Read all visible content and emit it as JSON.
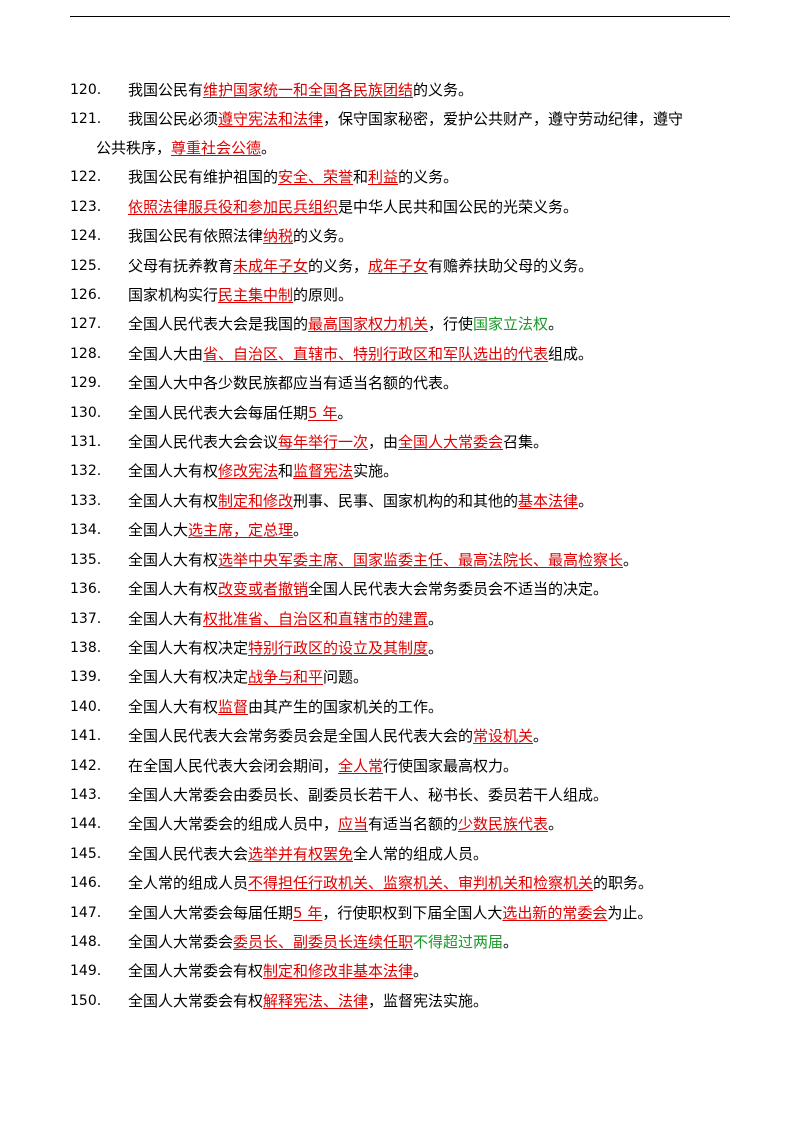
{
  "items": [
    {
      "num": "120.",
      "segs": [
        [
          "n",
          "我国公民有"
        ],
        [
          "r",
          "维护国家统一和全国各民族团结"
        ],
        [
          "n",
          "的义务。"
        ]
      ]
    },
    {
      "num": "121.",
      "wrap": true,
      "segs": [
        [
          "n",
          "我国公民必须"
        ],
        [
          "r",
          "遵守宪法和法律"
        ],
        [
          "n",
          "，保守国家秘密，爱护公共财产，遵守劳动纪律，遵守"
        ]
      ],
      "cont": [
        [
          "n",
          "公共秩序，"
        ],
        [
          "r",
          "尊重社会公德"
        ],
        [
          "n",
          "。"
        ]
      ]
    },
    {
      "num": "122.",
      "segs": [
        [
          "n",
          "我国公民有维护祖国的"
        ],
        [
          "r",
          "安全、荣誉"
        ],
        [
          "n",
          "和"
        ],
        [
          "r",
          "利益"
        ],
        [
          "n",
          "的义务。"
        ]
      ]
    },
    {
      "num": "123.",
      "segs": [
        [
          "r",
          "依照法律服兵役和参加民兵组织"
        ],
        [
          "n",
          "是中华人民共和国公民的光荣义务。"
        ]
      ]
    },
    {
      "num": "124.",
      "segs": [
        [
          "n",
          "我国公民有依照法律"
        ],
        [
          "r",
          "纳税"
        ],
        [
          "n",
          "的义务。"
        ]
      ]
    },
    {
      "num": "125.",
      "segs": [
        [
          "n",
          "父母有抚养教育"
        ],
        [
          "r",
          "未成年子女"
        ],
        [
          "n",
          "的义务，"
        ],
        [
          "r",
          "成年子女"
        ],
        [
          "n",
          "有赡养扶助父母的义务。"
        ]
      ]
    },
    {
      "num": "126.",
      "segs": [
        [
          "n",
          "国家机构实行"
        ],
        [
          "r",
          "民主集中制"
        ],
        [
          "n",
          "的原则。"
        ]
      ]
    },
    {
      "num": "127.",
      "segs": [
        [
          "n",
          "全国人民代表大会是我国的"
        ],
        [
          "r",
          "最高国家权力机关"
        ],
        [
          "n",
          "，行使"
        ],
        [
          "g",
          "国家立法权"
        ],
        [
          "n",
          "。"
        ]
      ]
    },
    {
      "num": "128.",
      "segs": [
        [
          "n",
          "全国人大由"
        ],
        [
          "r",
          "省、自治区、直辖市、特别行政区和军队选出的代表"
        ],
        [
          "n",
          "组成。"
        ]
      ]
    },
    {
      "num": "129.",
      "segs": [
        [
          "n",
          "全国人大中各少数民族都应当有适当名额的代表。"
        ]
      ]
    },
    {
      "num": "130.",
      "segs": [
        [
          "n",
          "全国人民代表大会每届任期"
        ],
        [
          "r",
          "5 年"
        ],
        [
          "n",
          "。"
        ]
      ]
    },
    {
      "num": "131.",
      "segs": [
        [
          "n",
          "全国人民代表大会会议"
        ],
        [
          "r",
          "每年举行一次"
        ],
        [
          "n",
          "，由"
        ],
        [
          "r",
          "全国人大常委会"
        ],
        [
          "n",
          "召集。"
        ]
      ]
    },
    {
      "num": "132.",
      "segs": [
        [
          "n",
          "全国人大有权"
        ],
        [
          "r",
          "修改宪法"
        ],
        [
          "n",
          "和"
        ],
        [
          "r",
          "监督宪法"
        ],
        [
          "n",
          "实施。"
        ]
      ]
    },
    {
      "num": "133.",
      "segs": [
        [
          "n",
          "全国人大有权"
        ],
        [
          "r",
          "制定和修改"
        ],
        [
          "n",
          "刑事、民事、国家机构的和其他的"
        ],
        [
          "r",
          "基本法律"
        ],
        [
          "n",
          "。"
        ]
      ]
    },
    {
      "num": "134.",
      "segs": [
        [
          "n",
          "全国人大"
        ],
        [
          "r",
          "选主席，定总理"
        ],
        [
          "n",
          "。"
        ]
      ]
    },
    {
      "num": "135.",
      "segs": [
        [
          "n",
          "全国人大有权"
        ],
        [
          "r",
          "选举中央军委主席、国家监委主任、最高法院长、最高检察长"
        ],
        [
          "n",
          "。"
        ]
      ]
    },
    {
      "num": "136.",
      "segs": [
        [
          "n",
          "全国人大有权"
        ],
        [
          "r",
          "改变或者撤销"
        ],
        [
          "n",
          "全国人民代表大会常务委员会不适当的决定。"
        ]
      ]
    },
    {
      "num": "137.",
      "segs": [
        [
          "n",
          "全国人大有"
        ],
        [
          "r",
          "权批准省、自治区和直辖市的建置"
        ],
        [
          "n",
          "。"
        ]
      ]
    },
    {
      "num": "138.",
      "segs": [
        [
          "n",
          "全国人大有权决定"
        ],
        [
          "r",
          "特别行政区的设立及其制度"
        ],
        [
          "n",
          "。"
        ]
      ]
    },
    {
      "num": "139.",
      "segs": [
        [
          "n",
          "全国人大有权决定"
        ],
        [
          "r",
          "战争与和平"
        ],
        [
          "n",
          "问题。"
        ]
      ]
    },
    {
      "num": "140.",
      "segs": [
        [
          "n",
          "全国人大有权"
        ],
        [
          "r",
          "监督"
        ],
        [
          "n",
          "由其产生的国家机关的工作。"
        ]
      ]
    },
    {
      "num": "141.",
      "segs": [
        [
          "n",
          "全国人民代表大会常务委员会是全国人民代表大会的"
        ],
        [
          "r",
          "常设机关"
        ],
        [
          "n",
          "。"
        ]
      ]
    },
    {
      "num": "142.",
      "segs": [
        [
          "n",
          "在全国人民代表大会闭会期间，"
        ],
        [
          "r",
          "全人常"
        ],
        [
          "n",
          "行使国家最高权力。"
        ]
      ]
    },
    {
      "num": "143.",
      "segs": [
        [
          "n",
          "全国人大常委会由委员长、副委员长若干人、秘书长、委员若干人组成。"
        ]
      ]
    },
    {
      "num": "144.",
      "segs": [
        [
          "n",
          "全国人大常委会的组成人员中，"
        ],
        [
          "r",
          "应当"
        ],
        [
          "n",
          "有适当名额的"
        ],
        [
          "r",
          "少数民族代表"
        ],
        [
          "n",
          "。"
        ]
      ]
    },
    {
      "num": "145.",
      "segs": [
        [
          "n",
          "全国人民代表大会"
        ],
        [
          "r",
          "选举并有权罢免"
        ],
        [
          "n",
          "全人常的组成人员。"
        ]
      ]
    },
    {
      "num": "146.",
      "segs": [
        [
          "n",
          "全人常的组成人员"
        ],
        [
          "r",
          "不得担任行政机关、监察机关、审判机关和检察机关"
        ],
        [
          "n",
          "的职务。"
        ]
      ]
    },
    {
      "num": "147.",
      "segs": [
        [
          "n",
          "全国人大常委会每届任期"
        ],
        [
          "r",
          "5 年"
        ],
        [
          "n",
          "，行使职权到下届全国人大"
        ],
        [
          "r",
          "选出新的常委会"
        ],
        [
          "n",
          "为止。"
        ]
      ]
    },
    {
      "num": "148.",
      "segs": [
        [
          "n",
          "全国人大常委会"
        ],
        [
          "r",
          "委员长、副委员长连续任职"
        ],
        [
          "g",
          "不得超过两届"
        ],
        [
          "n",
          "。"
        ]
      ]
    },
    {
      "num": "149.",
      "segs": [
        [
          "n",
          "全国人大常委会有权"
        ],
        [
          "r",
          "制定和修改非基本法律"
        ],
        [
          "n",
          "。"
        ]
      ]
    },
    {
      "num": "150.",
      "segs": [
        [
          "n",
          "全国人大常委会有权"
        ],
        [
          "r",
          "解释宪法、法律"
        ],
        [
          "n",
          "，监督宪法实施。"
        ]
      ]
    }
  ],
  "colors": {
    "highlight_red": "#e00000",
    "highlight_green": "#1a9a2a"
  }
}
